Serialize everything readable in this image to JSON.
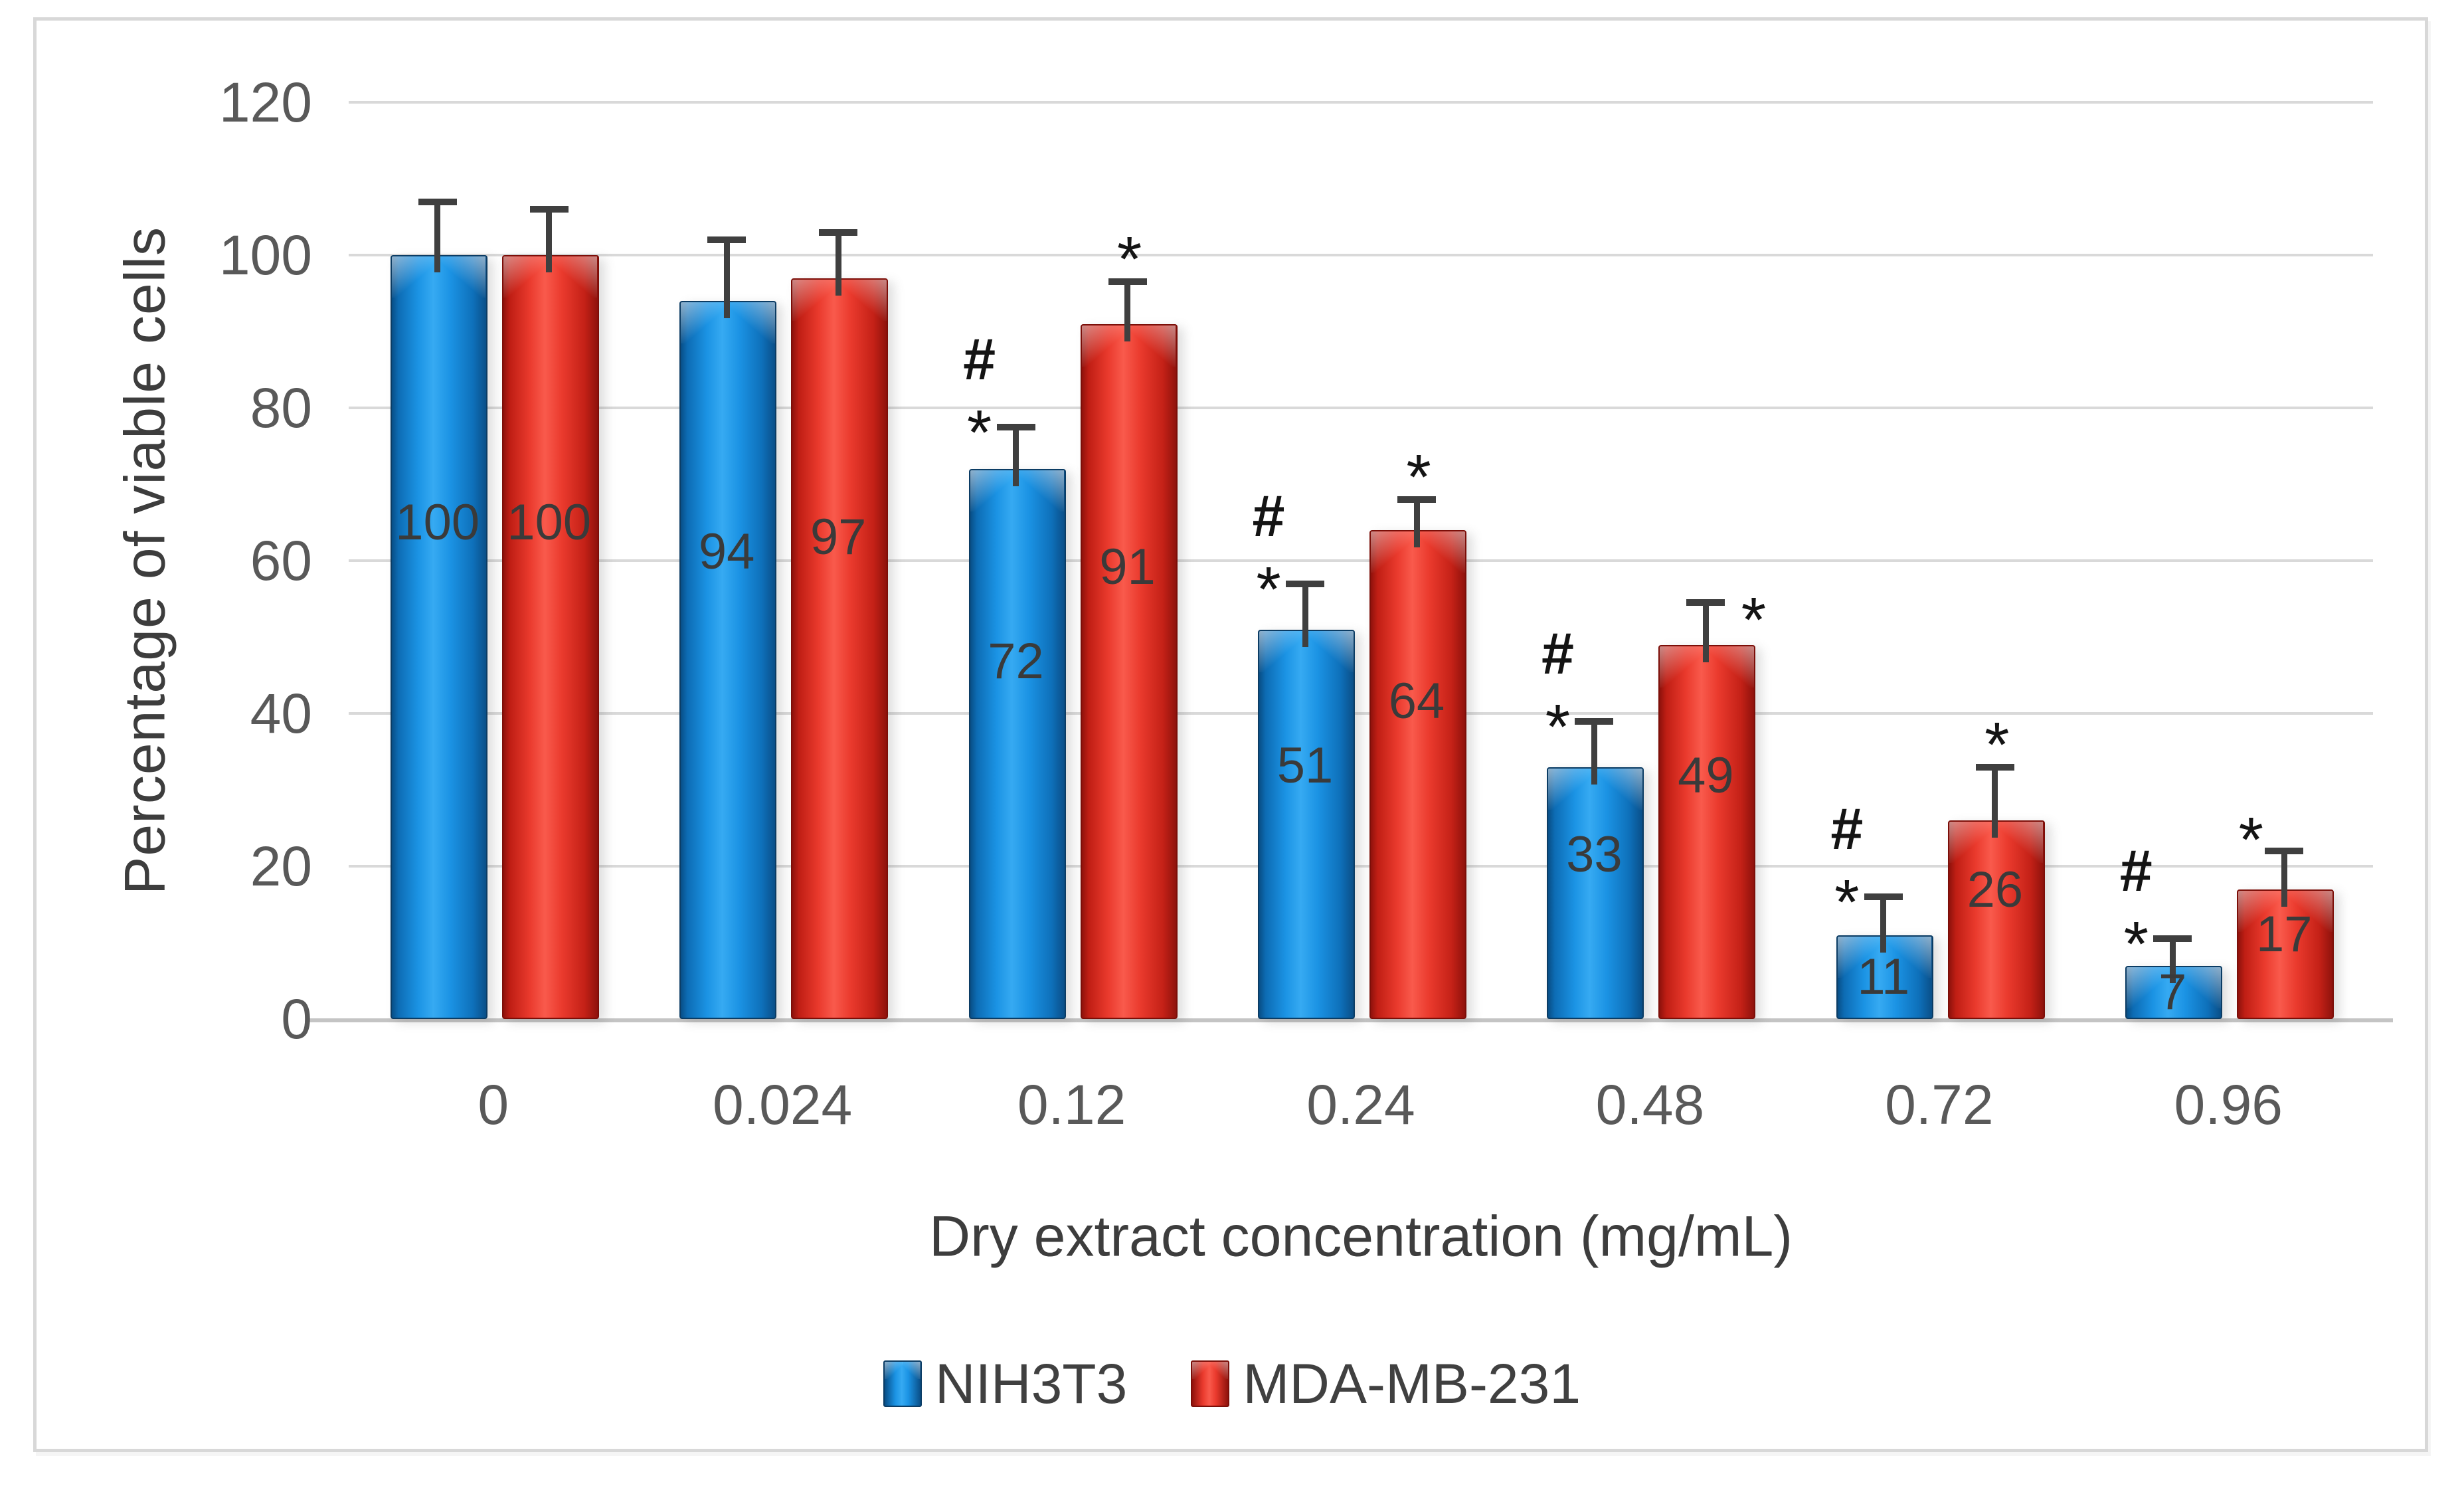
{
  "figure": {
    "background": "#ffffff",
    "border_color": "#d8d8d8"
  },
  "colors": {
    "gridline": "#d9d9d9",
    "axis_line": "#c4c4c4",
    "tick_text": "#595959",
    "title_text": "#3d3d3d",
    "value_label_text": "#3a3a3a",
    "error_bar": "#3f3f3f",
    "annotation_text": "#141414",
    "series_blue": "#1b93e4",
    "series_red": "#ea3a2d"
  },
  "chart_data": {
    "type": "bar",
    "title": "",
    "xlabel": "Dry extract concentration (mg/mL)",
    "ylabel": "Percentage of viable cells",
    "categories": [
      "0",
      "0.024",
      "0.12",
      "0.24",
      "0.48",
      "0.72",
      "0.96"
    ],
    "series": [
      {
        "name": "NIH3T3",
        "color": "#1b93e4",
        "values": [
          100,
          94,
          72,
          51,
          33,
          11,
          7
        ],
        "errors": [
          7,
          8,
          5.5,
          6,
          6,
          5,
          3.5
        ],
        "data_labels": [
          "100",
          "94",
          "72",
          "51",
          "33",
          "11",
          "7"
        ],
        "annotations": [
          null,
          null,
          {
            "symbols": [
              "#",
              "*"
            ],
            "placement": "left"
          },
          {
            "symbols": [
              "#",
              "*"
            ],
            "placement": "left"
          },
          {
            "symbols": [
              "#",
              "*"
            ],
            "placement": "left"
          },
          {
            "symbols": [
              "#",
              "*"
            ],
            "placement": "left"
          },
          {
            "symbols": [
              "#",
              "*"
            ],
            "placement": "left"
          }
        ]
      },
      {
        "name": "MDA-MB-231",
        "color": "#ea3a2d",
        "values": [
          100,
          97,
          91,
          64,
          49,
          26,
          17
        ],
        "errors": [
          6,
          6,
          5.5,
          4,
          5.5,
          7,
          5
        ],
        "data_labels": [
          "100",
          "97",
          "91",
          "64",
          "49",
          "26",
          "17"
        ],
        "annotations": [
          null,
          null,
          {
            "symbols": [
              "*"
            ],
            "placement": "above"
          },
          {
            "symbols": [
              "*"
            ],
            "placement": "above"
          },
          {
            "symbols": [
              "*"
            ],
            "placement": "right"
          },
          {
            "symbols": [
              "*"
            ],
            "placement": "above"
          },
          {
            "symbols": [
              "*"
            ],
            "placement": "left-above"
          }
        ]
      }
    ],
    "ylim": [
      0,
      120
    ],
    "ytick_step": 20,
    "y_ticks": [
      {
        "label": "0",
        "value": 0
      },
      {
        "label": "20",
        "value": 20
      },
      {
        "label": "40",
        "value": 40
      },
      {
        "label": "60",
        "value": 60
      },
      {
        "label": "80",
        "value": 80
      },
      {
        "label": "100",
        "value": 100
      },
      {
        "label": "120",
        "value": 120
      }
    ],
    "grid": true,
    "legend_position": "bottom",
    "error_bars": "upper"
  }
}
